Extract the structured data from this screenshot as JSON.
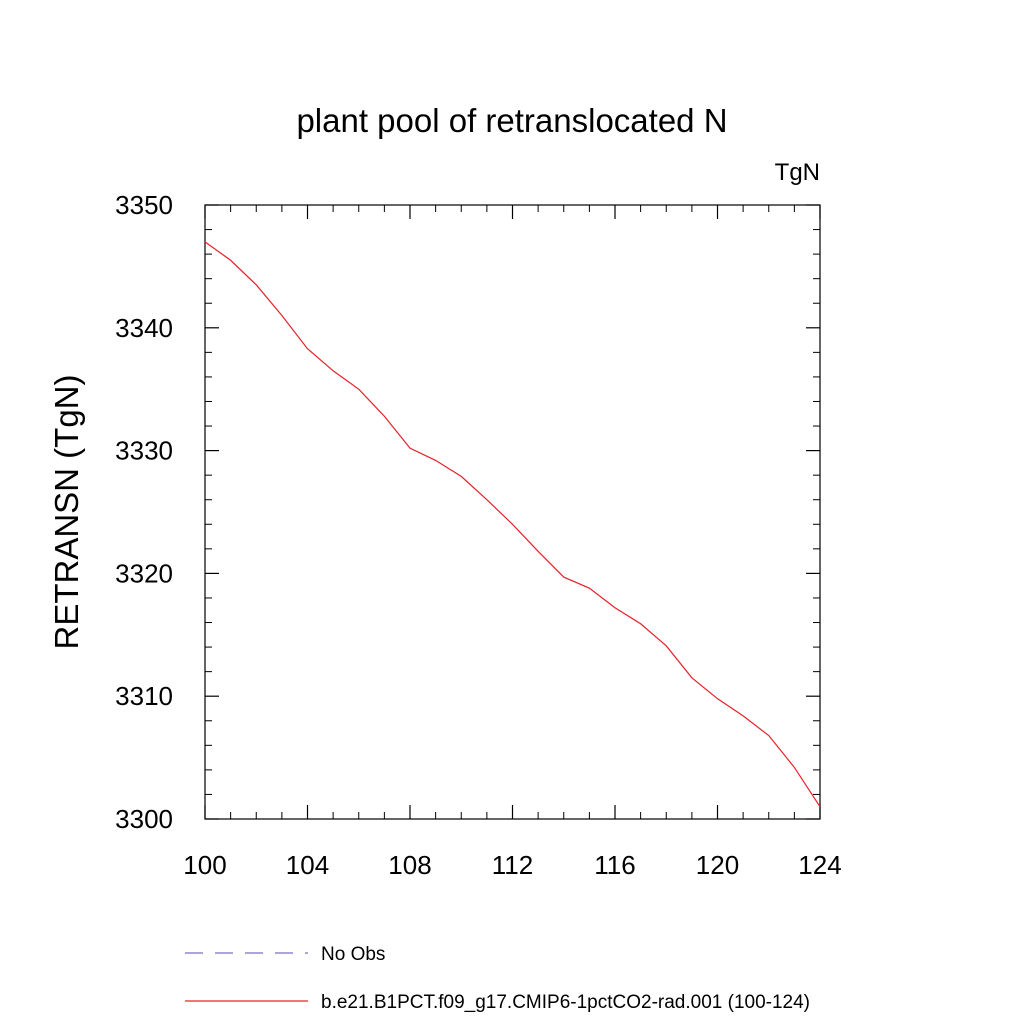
{
  "chart_data": {
    "type": "line",
    "title": "plant pool of retranslocated N",
    "units_label": "TgN",
    "ylabel": "RETRANSN  (TgN)",
    "xlabel": "",
    "xlim": [
      100,
      124
    ],
    "ylim": [
      3300,
      3350
    ],
    "xticks": [
      100,
      104,
      108,
      112,
      116,
      120,
      124
    ],
    "yticks": [
      3300,
      3310,
      3320,
      3330,
      3340,
      3350
    ],
    "grid": false,
    "legend_position": "bottom",
    "x": [
      100,
      101,
      102,
      103,
      104,
      105,
      106,
      107,
      108,
      109,
      110,
      111,
      112,
      113,
      114,
      115,
      116,
      117,
      118,
      119,
      120,
      121,
      122,
      123,
      124
    ],
    "series": [
      {
        "name": "b.e21.B1PCT.f09_g17.CMIP6-1pctCO2-rad.001 (100-124)",
        "color": "#e8202a",
        "style": "solid",
        "values": [
          3347.0,
          3345.5,
          3343.5,
          3341.0,
          3338.3,
          3336.5,
          3335.0,
          3332.8,
          3330.2,
          3329.2,
          3327.9,
          3326.0,
          3324.0,
          3321.8,
          3319.7,
          3318.8,
          3317.2,
          3315.9,
          3314.1,
          3311.5,
          3309.8,
          3308.4,
          3306.8,
          3304.2,
          3301.0
        ]
      }
    ],
    "legend": [
      {
        "label": "No Obs",
        "color": "#7a70c0",
        "style": "dashed"
      },
      {
        "label": "b.e21.B1PCT.f09_g17.CMIP6-1pctCO2-rad.001 (100-124)",
        "color": "#e8202a",
        "style": "solid"
      }
    ]
  }
}
